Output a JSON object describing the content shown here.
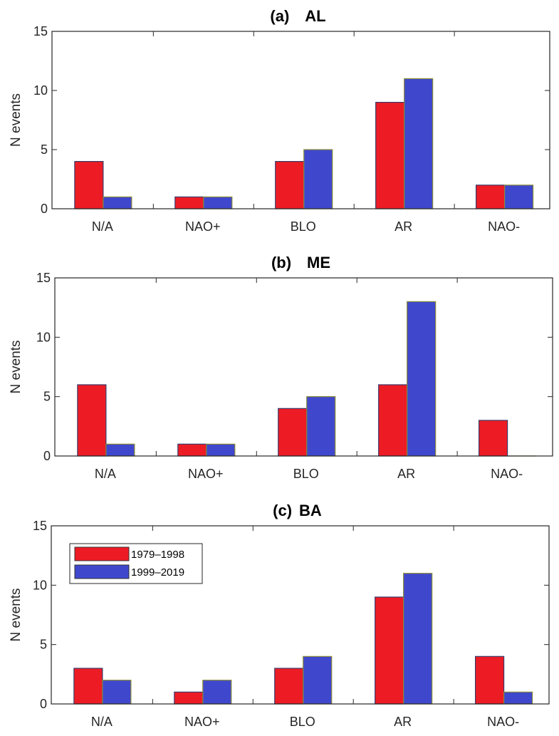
{
  "chart_data": [
    {
      "type": "bar",
      "panel": "(a)",
      "title": "AL",
      "xlabel": "",
      "ylabel": "N events",
      "ylim": [
        0,
        15
      ],
      "yticks": [
        0,
        5,
        10,
        15
      ],
      "grid": false,
      "categories": [
        "N/A",
        "NAO+",
        "BLO",
        "AR",
        "NAO-"
      ],
      "series": [
        {
          "name": "1979–1998",
          "color": "#ED1C24",
          "values": [
            4,
            1,
            4,
            9,
            2
          ]
        },
        {
          "name": "1999–2019",
          "color": "#3F48CC",
          "values": [
            1,
            1,
            5,
            11,
            2
          ]
        }
      ]
    },
    {
      "type": "bar",
      "panel": "(b)",
      "title": "ME",
      "xlabel": "",
      "ylabel": "N events",
      "ylim": [
        0,
        15
      ],
      "yticks": [
        0,
        5,
        10,
        15
      ],
      "grid": false,
      "categories": [
        "N/A",
        "NAO+",
        "BLO",
        "AR",
        "NAO-"
      ],
      "series": [
        {
          "name": "1979–1998",
          "color": "#ED1C24",
          "values": [
            6,
            1,
            4,
            6,
            3
          ]
        },
        {
          "name": "1999–2019",
          "color": "#3F48CC",
          "values": [
            1,
            1,
            5,
            13,
            0
          ]
        }
      ]
    },
    {
      "type": "bar",
      "panel": "(c)",
      "title": "BA",
      "xlabel": "",
      "ylabel": "N events",
      "ylim": [
        0,
        15
      ],
      "yticks": [
        0,
        5,
        10,
        15
      ],
      "grid": false,
      "categories": [
        "N/A",
        "NAO+",
        "BLO",
        "AR",
        "NAO-"
      ],
      "series": [
        {
          "name": "1979–1998",
          "color": "#ED1C24",
          "values": [
            3,
            1,
            3,
            9,
            4
          ]
        },
        {
          "name": "1999–2019",
          "color": "#3F48CC",
          "values": [
            2,
            2,
            4,
            11,
            1
          ]
        }
      ],
      "legend": {
        "placement": "top-left",
        "entries": [
          "1979–1998",
          "1999–2019"
        ]
      }
    }
  ]
}
